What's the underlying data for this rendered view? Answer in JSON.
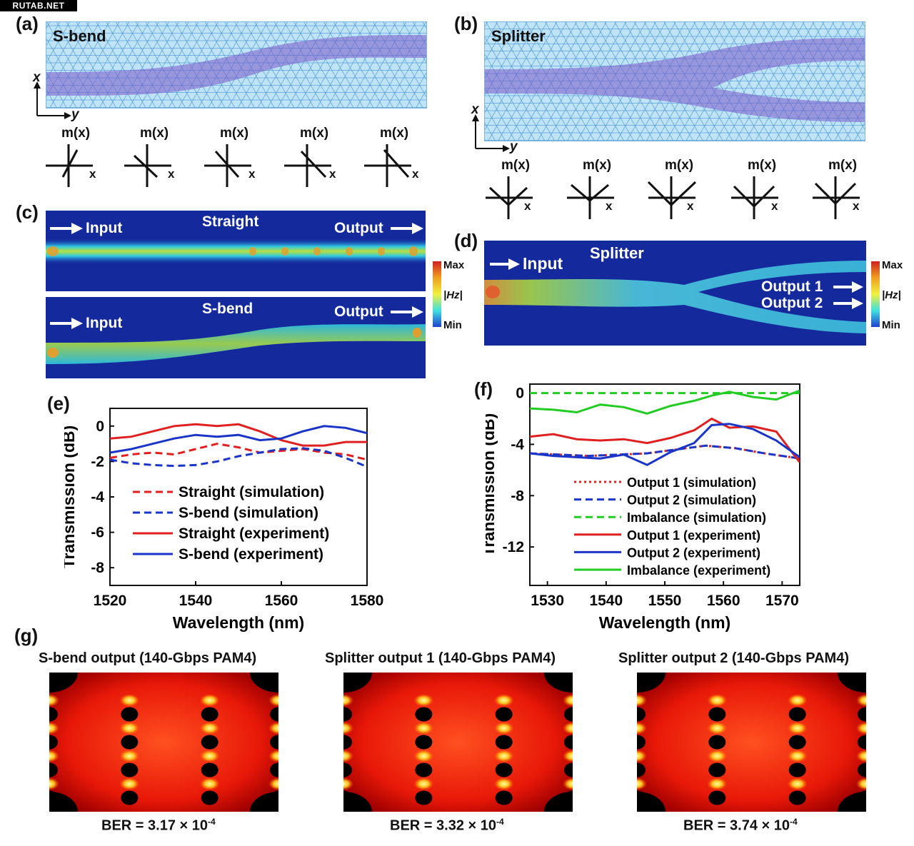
{
  "watermark": "RUTAB.NET",
  "panels": {
    "a": {
      "label": "(a)",
      "title": "S-bend",
      "axis_x": "x",
      "axis_y": "y",
      "profiles": [
        {
          "m": "m(x)",
          "x": "x"
        },
        {
          "m": "m(x)",
          "x": "x"
        },
        {
          "m": "m(x)",
          "x": "x"
        },
        {
          "m": "m(x)",
          "x": "x"
        },
        {
          "m": "m(x)",
          "x": "x"
        }
      ]
    },
    "b": {
      "label": "(b)",
      "title": "Splitter",
      "axis_x": "x",
      "axis_y": "y",
      "profiles": [
        {
          "m": "m(x)",
          "x": "x"
        },
        {
          "m": "m(x)",
          "x": "x"
        },
        {
          "m": "m(x)",
          "x": "x"
        },
        {
          "m": "m(x)",
          "x": "x"
        },
        {
          "m": "m(x)",
          "x": "x"
        }
      ]
    },
    "c": {
      "label": "(c)",
      "straight": {
        "title": "Straight",
        "input": "Input",
        "output": "Output"
      },
      "sbend": {
        "title": "S-bend",
        "input": "Input",
        "output": "Output"
      },
      "colorbar": {
        "max": "Max",
        "min": "Min",
        "quantity": "|Hz|"
      }
    },
    "d": {
      "label": "(d)",
      "title": "Splitter",
      "input": "Input",
      "output1": "Output 1",
      "output2": "Output 2",
      "colorbar": {
        "max": "Max",
        "min": "Min",
        "quantity": "|Hz|"
      }
    },
    "e": {
      "label": "(e)"
    },
    "f": {
      "label": "(f)"
    },
    "g": {
      "label": "(g)",
      "eyes": [
        {
          "caption": "S-bend output  (140-Gbps PAM4)",
          "ber_prefix": "BER = 3.17 × 10",
          "ber_exp": "-4"
        },
        {
          "caption": "Splitter output 1 (140-Gbps PAM4)",
          "ber_prefix": "BER = 3.32 × 10",
          "ber_exp": "-4"
        },
        {
          "caption": "Splitter output 2 (140-Gbps PAM4)",
          "ber_prefix": "BER = 3.74 × 10",
          "ber_exp": "-4"
        }
      ]
    }
  },
  "chart_data": [
    {
      "panel": "e",
      "type": "line",
      "xlabel": "Wavelength (nm)",
      "ylabel": "Transmission (dB)",
      "xlim": [
        1520,
        1580
      ],
      "ylim": [
        -9,
        1
      ],
      "xticks": [
        1520,
        1540,
        1560,
        1580
      ],
      "yticks": [
        0,
        -2,
        -4,
        -6,
        -8
      ],
      "legend_position": "lower-center",
      "series": [
        {
          "name": "Straight (simulation)",
          "color": "#e02020",
          "dash": "dashed",
          "x": [
            1520,
            1525,
            1530,
            1535,
            1540,
            1545,
            1550,
            1555,
            1560,
            1565,
            1570,
            1575,
            1580
          ],
          "y": [
            -1.8,
            -1.6,
            -1.5,
            -1.6,
            -1.3,
            -1.0,
            -1.2,
            -1.5,
            -1.4,
            -1.3,
            -1.5,
            -1.6,
            -1.9
          ]
        },
        {
          "name": "S-bend (simulation)",
          "color": "#1a35c8",
          "dash": "dashed",
          "x": [
            1520,
            1525,
            1530,
            1535,
            1540,
            1545,
            1550,
            1555,
            1560,
            1565,
            1570,
            1575,
            1580
          ],
          "y": [
            -1.9,
            -2.1,
            -2.2,
            -2.25,
            -2.2,
            -2.0,
            -1.7,
            -1.5,
            -1.3,
            -1.25,
            -1.4,
            -1.8,
            -2.3
          ]
        },
        {
          "name": "Straight (experiment)",
          "color": "#e02020",
          "dash": "solid",
          "x": [
            1520,
            1525,
            1530,
            1535,
            1540,
            1545,
            1550,
            1555,
            1560,
            1565,
            1570,
            1575,
            1580
          ],
          "y": [
            -0.7,
            -0.6,
            -0.3,
            0.0,
            0.1,
            0.0,
            0.1,
            -0.3,
            -0.8,
            -1.1,
            -1.1,
            -0.9,
            -0.9
          ]
        },
        {
          "name": "S-bend (experiment)",
          "color": "#1a35c8",
          "dash": "solid",
          "x": [
            1520,
            1525,
            1530,
            1535,
            1540,
            1545,
            1550,
            1555,
            1560,
            1565,
            1570,
            1575,
            1580
          ],
          "y": [
            -1.5,
            -1.3,
            -1.0,
            -0.7,
            -0.5,
            -0.6,
            -0.5,
            -0.8,
            -0.7,
            -0.3,
            0.0,
            -0.1,
            -0.4
          ]
        }
      ]
    },
    {
      "panel": "f",
      "type": "line",
      "xlabel": "Wavelength (nm)",
      "ylabel": "Transmission (dB)",
      "xlim": [
        1527,
        1573
      ],
      "ylim": [
        -15,
        0.7
      ],
      "xticks": [
        1530,
        1540,
        1550,
        1560,
        1570
      ],
      "yticks": [
        0,
        -4,
        -8,
        -12
      ],
      "legend_position": "lower-center",
      "series": [
        {
          "name": "Output 1 (simulation)",
          "color": "#e02020",
          "dash": "dotted",
          "x": [
            1527,
            1532,
            1537,
            1542,
            1547,
            1552,
            1557,
            1562,
            1567,
            1573
          ],
          "y": [
            -4.7,
            -4.8,
            -4.9,
            -4.8,
            -4.7,
            -4.4,
            -4.1,
            -4.3,
            -4.7,
            -5.1
          ]
        },
        {
          "name": "Output 2 (simulation)",
          "color": "#1a35c8",
          "dash": "dashed",
          "x": [
            1527,
            1532,
            1537,
            1542,
            1547,
            1552,
            1557,
            1562,
            1567,
            1573
          ],
          "y": [
            -4.7,
            -4.8,
            -4.9,
            -4.8,
            -4.7,
            -4.4,
            -4.1,
            -4.3,
            -4.7,
            -5.1
          ]
        },
        {
          "name": "Imbalance (simulation)",
          "color": "#22cc22",
          "dash": "dashed",
          "x": [
            1527,
            1573
          ],
          "y": [
            0.0,
            0.0
          ]
        },
        {
          "name": "Output 1 (experiment)",
          "color": "#e02020",
          "dash": "solid",
          "x": [
            1527,
            1531,
            1535,
            1539,
            1543,
            1547,
            1551,
            1555,
            1558,
            1561,
            1565,
            1569,
            1573
          ],
          "y": [
            -3.4,
            -3.2,
            -3.6,
            -3.7,
            -3.6,
            -3.9,
            -3.5,
            -2.9,
            -2.0,
            -2.7,
            -2.6,
            -3.0,
            -5.4
          ]
        },
        {
          "name": "Output 2 (experiment)",
          "color": "#1a35c8",
          "dash": "solid",
          "x": [
            1527,
            1531,
            1535,
            1539,
            1543,
            1547,
            1551,
            1555,
            1558,
            1561,
            1565,
            1569,
            1573
          ],
          "y": [
            -4.7,
            -4.9,
            -5.0,
            -5.1,
            -4.8,
            -5.6,
            -4.6,
            -3.9,
            -2.5,
            -2.4,
            -2.8,
            -3.7,
            -5.0
          ]
        },
        {
          "name": "Imbalance (experiment)",
          "color": "#22cc22",
          "dash": "solid",
          "x": [
            1527,
            1531,
            1535,
            1539,
            1543,
            1547,
            1551,
            1555,
            1558,
            1561,
            1565,
            1569,
            1573
          ],
          "y": [
            -1.2,
            -1.3,
            -1.5,
            -0.9,
            -1.1,
            -1.6,
            -1.0,
            -0.6,
            -0.2,
            0.1,
            -0.3,
            -0.5,
            0.2
          ]
        }
      ]
    }
  ]
}
